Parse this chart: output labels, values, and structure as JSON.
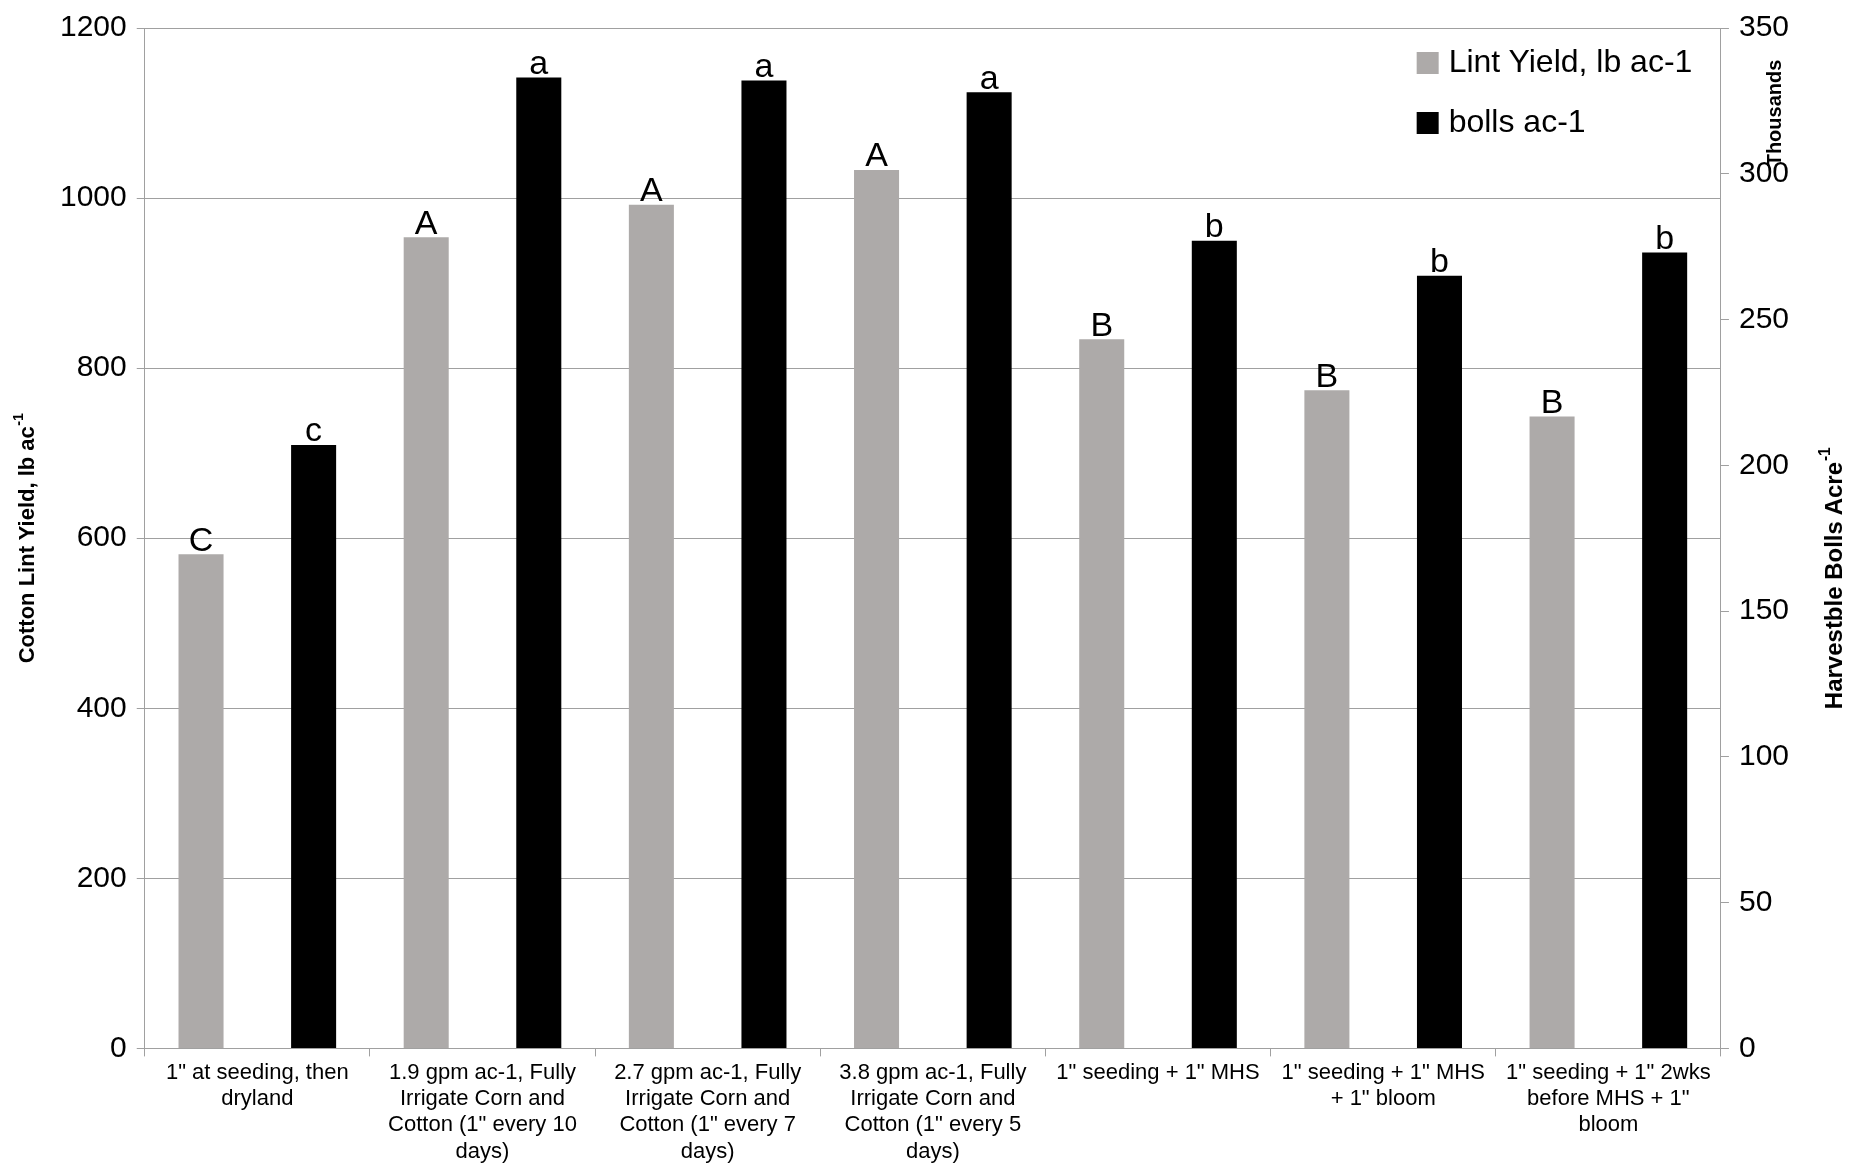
{
  "chart_data": {
    "type": "bar",
    "ylabel": "Cotton Lint Yield, lb ac$^{-1}$",
    "y2label": "Harvestble Bolls Acre$^{-1}$",
    "annotations": [
      "Thousands"
    ],
    "categories": [
      "1\" at seeding, then dryland",
      "1.9 gpm ac-1, Fully Irrigate Corn and Cotton (1\" every 10 days)",
      "2.7 gpm ac-1, Fully Irrigate Corn and Cotton (1\" every 7 days)",
      "3.8 gpm ac-1, Fully Irrigate Corn and Cotton (1\" every 5 days)",
      "1\" seeding + 1\" MHS",
      "1\" seeding + 1\" MHS + 1\" bloom",
      "1\" seeding + 1\" 2wks before MHS + 1\" bloom"
    ],
    "series": [
      {
        "name": "Lint Yield, lb ac-1",
        "color": "#adaaa9",
        "values": [
          581,
          954,
          992,
          1033,
          834,
          774,
          743
        ],
        "value_labels": [
          "C",
          "A",
          "A",
          "A",
          "B",
          "B",
          "B"
        ]
      },
      {
        "name": "bolls ac-1",
        "color": "#000000",
        "axis": "y2",
        "values": [
          207,
          333,
          332,
          328,
          277,
          265,
          273
        ],
        "value_labels": [
          "c",
          "a",
          "a",
          "a",
          "b",
          "b",
          "b"
        ]
      }
    ],
    "ylim": [
      0,
      1200
    ],
    "yticks": [
      0,
      200,
      400,
      600,
      800,
      1000,
      1200
    ],
    "y2lim": [
      0,
      350
    ],
    "y2ticks": [
      0,
      50,
      100,
      150,
      200,
      250,
      300,
      350
    ],
    "grid": "y",
    "legend": "top right"
  }
}
